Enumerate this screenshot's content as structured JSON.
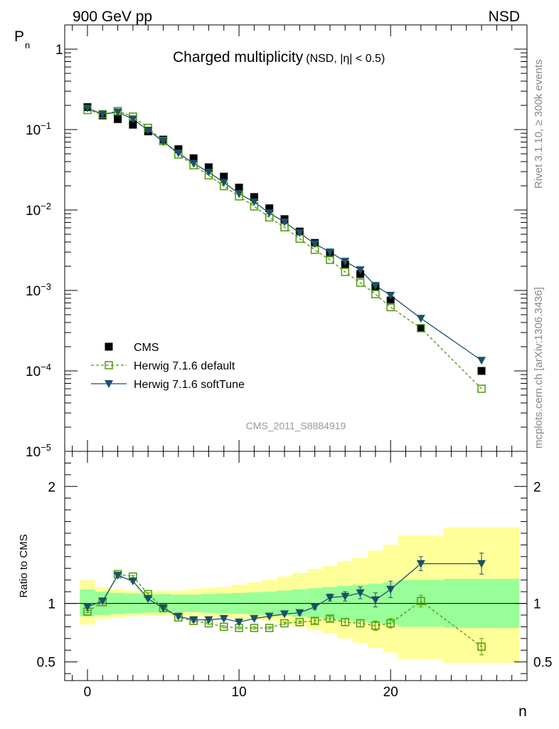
{
  "header": {
    "energy_label": "900 GeV pp",
    "process_label": "NSD",
    "title_main": "Charged multiplicity",
    "title_sub": "(NSD, |η| < 0.5)",
    "side_label_top": "Rivet 3.1.10, ≥ 300k events",
    "side_label_bottom": "mcplots.cern.ch [arXiv:1306.3436]",
    "analysis_label": "CMS_2011_S8884919"
  },
  "colors": {
    "cms": "#000000",
    "herwig_default": "#4e9a06",
    "herwig_soft": "#1a5168",
    "band_inner": "#99ff99",
    "band_outer": "#ffff99"
  },
  "chart_data": [
    {
      "type": "scatter",
      "panel": "main",
      "ylabel": "P",
      "ylabel_sub": "n",
      "y_scale": "log",
      "ylim": [
        1e-05,
        2
      ],
      "xlim": [
        -1.5,
        29
      ],
      "y_ticks": [
        {
          "value": 1,
          "label": "1"
        },
        {
          "value": 0.1,
          "label": "10",
          "exp": "−1"
        },
        {
          "value": 0.01,
          "label": "10",
          "exp": "−2"
        },
        {
          "value": 0.001,
          "label": "10",
          "exp": "−3"
        },
        {
          "value": 0.0001,
          "label": "10",
          "exp": "−4"
        },
        {
          "value": 1e-05,
          "label": "10",
          "exp": "−5"
        }
      ],
      "legend_position": "bottom-left",
      "series": [
        {
          "name": "CMS",
          "style": "square-filled",
          "x": [
            0,
            1,
            2,
            3,
            4,
            5,
            6,
            7,
            8,
            9,
            10,
            11,
            12,
            13,
            14,
            15,
            16,
            17,
            18,
            19,
            20,
            22,
            26
          ],
          "y": [
            0.19,
            0.15,
            0.135,
            0.115,
            0.095,
            0.075,
            0.057,
            0.044,
            0.034,
            0.026,
            0.019,
            0.0145,
            0.0105,
            0.0077,
            0.0054,
            0.0039,
            0.0029,
            0.0021,
            0.0016,
            0.0011,
            0.00075,
            0.00034,
            0.0001
          ]
        },
        {
          "name": "Herwig 7.1.6 default",
          "style": "square-open-dashed",
          "x": [
            0,
            1,
            2,
            3,
            4,
            5,
            6,
            7,
            8,
            9,
            10,
            11,
            12,
            13,
            14,
            15,
            16,
            17,
            18,
            19,
            20,
            22,
            26
          ],
          "y": [
            0.175,
            0.155,
            0.17,
            0.145,
            0.105,
            0.072,
            0.049,
            0.036,
            0.027,
            0.0198,
            0.0148,
            0.0111,
            0.0081,
            0.0061,
            0.0044,
            0.0032,
            0.0024,
            0.0017,
            0.00125,
            0.0009,
            0.00062,
            0.00034,
            6e-05
          ]
        },
        {
          "name": "Herwig 7.1.6 softTune",
          "style": "triangle-down-solid",
          "x": [
            0,
            1,
            2,
            3,
            4,
            5,
            6,
            7,
            8,
            9,
            10,
            11,
            12,
            13,
            14,
            15,
            16,
            17,
            18,
            19,
            20,
            22,
            26
          ],
          "y": [
            0.185,
            0.155,
            0.165,
            0.135,
            0.098,
            0.071,
            0.051,
            0.038,
            0.0295,
            0.022,
            0.016,
            0.0126,
            0.0092,
            0.0071,
            0.0052,
            0.0038,
            0.003,
            0.0023,
            0.0018,
            0.00115,
            0.00087,
            0.00045,
            0.000135
          ]
        }
      ]
    },
    {
      "type": "scatter",
      "panel": "ratio",
      "xlabel": "n",
      "ylabel": "Ratio to CMS",
      "ylim": [
        0.34,
        2.3
      ],
      "xlim": [
        -1.5,
        29
      ],
      "x_ticks": [
        0,
        10,
        20
      ],
      "y_tick_labels": [
        {
          "value": 2,
          "label": "2"
        },
        {
          "value": 1,
          "label": "1"
        },
        {
          "value": 0.5,
          "label": "0.5"
        }
      ],
      "bands": {
        "edges": [
          -0.5,
          0.5,
          1.5,
          2.5,
          3.5,
          4.5,
          5.5,
          6.5,
          7.5,
          8.5,
          9.5,
          10.5,
          11.5,
          12.5,
          13.5,
          14.5,
          15.5,
          16.5,
          17.5,
          18.5,
          19.5,
          20.5,
          23.5,
          28.5
        ],
        "inner_lo": [
          0.89,
          0.9,
          0.91,
          0.915,
          0.92,
          0.92,
          0.925,
          0.925,
          0.92,
          0.915,
          0.91,
          0.905,
          0.9,
          0.895,
          0.885,
          0.875,
          0.865,
          0.855,
          0.84,
          0.83,
          0.82,
          0.8,
          0.79
        ],
        "inner_hi": [
          1.12,
          1.1,
          1.09,
          1.085,
          1.08,
          1.08,
          1.075,
          1.075,
          1.08,
          1.085,
          1.09,
          1.095,
          1.1,
          1.11,
          1.12,
          1.13,
          1.14,
          1.15,
          1.16,
          1.17,
          1.18,
          1.2,
          1.21
        ],
        "outer_lo": [
          0.82,
          0.87,
          0.88,
          0.89,
          0.9,
          0.895,
          0.895,
          0.89,
          0.885,
          0.875,
          0.87,
          0.86,
          0.85,
          0.83,
          0.8,
          0.77,
          0.74,
          0.7,
          0.66,
          0.62,
          0.58,
          0.52,
          0.49
        ],
        "outer_hi": [
          1.2,
          1.14,
          1.12,
          1.11,
          1.1,
          1.11,
          1.11,
          1.12,
          1.13,
          1.14,
          1.16,
          1.18,
          1.2,
          1.23,
          1.26,
          1.29,
          1.32,
          1.36,
          1.39,
          1.45,
          1.5,
          1.58,
          1.65
        ]
      },
      "series": [
        {
          "name": "Herwig 7.1.6 default",
          "style": "square-open-dashed",
          "x": [
            0,
            1,
            2,
            3,
            4,
            5,
            6,
            7,
            8,
            9,
            10,
            11,
            12,
            13,
            14,
            15,
            16,
            17,
            18,
            19,
            20,
            22,
            26
          ],
          "y": [
            0.93,
            1.01,
            1.25,
            1.23,
            1.08,
            0.96,
            0.88,
            0.85,
            0.83,
            0.8,
            0.79,
            0.79,
            0.79,
            0.83,
            0.84,
            0.85,
            0.87,
            0.84,
            0.83,
            0.81,
            0.83,
            1.02,
            0.63
          ],
          "err": [
            0.01,
            0.01,
            0.01,
            0.01,
            0.01,
            0.01,
            0.01,
            0.01,
            0.01,
            0.01,
            0.01,
            0.01,
            0.01,
            0.01,
            0.01,
            0.02,
            0.02,
            0.03,
            0.03,
            0.04,
            0.04,
            0.05,
            0.07
          ]
        },
        {
          "name": "Herwig 7.1.6 softTune",
          "style": "triangle-down-solid",
          "x": [
            0,
            1,
            2,
            3,
            4,
            5,
            6,
            7,
            8,
            9,
            10,
            11,
            12,
            13,
            14,
            15,
            16,
            17,
            18,
            19,
            20,
            22,
            26
          ],
          "y": [
            0.97,
            1.02,
            1.24,
            1.19,
            1.04,
            0.96,
            0.89,
            0.86,
            0.86,
            0.87,
            0.84,
            0.87,
            0.89,
            0.91,
            0.92,
            0.97,
            1.05,
            1.06,
            1.09,
            1.03,
            1.12,
            1.34,
            1.34
          ],
          "err": [
            0.01,
            0.01,
            0.01,
            0.01,
            0.01,
            0.01,
            0.01,
            0.01,
            0.01,
            0.01,
            0.01,
            0.01,
            0.01,
            0.01,
            0.02,
            0.02,
            0.03,
            0.04,
            0.05,
            0.06,
            0.07,
            0.06,
            0.09
          ]
        }
      ]
    }
  ]
}
